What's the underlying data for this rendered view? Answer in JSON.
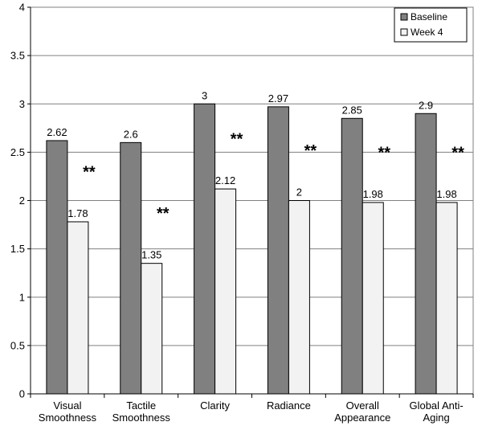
{
  "chart_data": {
    "type": "bar",
    "categories": [
      [
        "Visual",
        "Smoothness"
      ],
      [
        "Tactile",
        "Smoothness"
      ],
      [
        "Clarity"
      ],
      [
        "Radiance"
      ],
      [
        "Overall",
        "Appearance"
      ],
      [
        "Global Anti-",
        "Aging"
      ]
    ],
    "series": [
      {
        "name": "Baseline",
        "values": [
          2.62,
          2.6,
          3,
          2.97,
          2.85,
          2.9
        ],
        "color": "#808080",
        "labels": [
          "2.62",
          "2.6",
          "3",
          "2.97",
          "2.85",
          "2.9"
        ]
      },
      {
        "name": "Week 4",
        "values": [
          1.78,
          1.35,
          2.12,
          2,
          1.98,
          1.98
        ],
        "color": "#f2f2f2",
        "labels": [
          "1.78",
          "1.35",
          "2.12",
          "2",
          "1.98",
          "1.98"
        ]
      }
    ],
    "significance": [
      "**",
      "**",
      "**",
      "**",
      "**",
      "**"
    ],
    "ylim": [
      0,
      4
    ],
    "yticks": [
      "0",
      "0.5",
      "1",
      "1.5",
      "2",
      "2.5",
      "3",
      "3.5",
      "4"
    ],
    "grid": true,
    "legend_position": "top-right",
    "title": "",
    "xlabel": "",
    "ylabel": ""
  }
}
